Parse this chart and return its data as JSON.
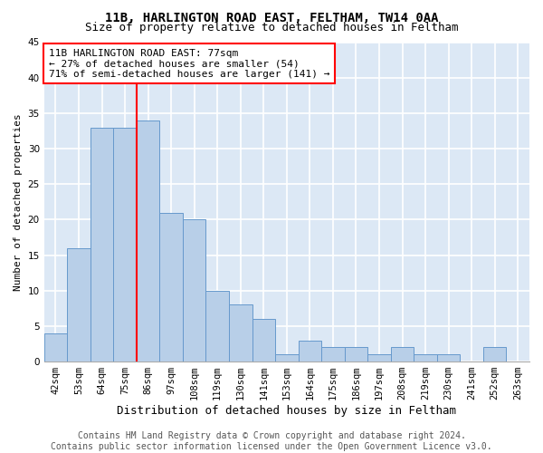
{
  "title": "11B, HARLINGTON ROAD EAST, FELTHAM, TW14 0AA",
  "subtitle": "Size of property relative to detached houses in Feltham",
  "xlabel": "Distribution of detached houses by size in Feltham",
  "ylabel": "Number of detached properties",
  "categories": [
    "42sqm",
    "53sqm",
    "64sqm",
    "75sqm",
    "86sqm",
    "97sqm",
    "108sqm",
    "119sqm",
    "130sqm",
    "141sqm",
    "153sqm",
    "164sqm",
    "175sqm",
    "186sqm",
    "197sqm",
    "208sqm",
    "219sqm",
    "230sqm",
    "241sqm",
    "252sqm",
    "263sqm"
  ],
  "values": [
    4,
    16,
    33,
    33,
    34,
    21,
    20,
    10,
    8,
    6,
    1,
    3,
    2,
    2,
    1,
    2,
    1,
    1,
    0,
    2,
    0
  ],
  "bar_color": "#b8cfe8",
  "bar_edge_color": "#6699cc",
  "property_line_x": 3.5,
  "annotation_text": "11B HARLINGTON ROAD EAST: 77sqm\n← 27% of detached houses are smaller (54)\n71% of semi-detached houses are larger (141) →",
  "annotation_box_color": "white",
  "annotation_box_edge": "red",
  "vline_color": "red",
  "ylim": [
    0,
    45
  ],
  "yticks": [
    0,
    5,
    10,
    15,
    20,
    25,
    30,
    35,
    40,
    45
  ],
  "background_color": "#dce8f5",
  "grid_color": "white",
  "footer_line1": "Contains HM Land Registry data © Crown copyright and database right 2024.",
  "footer_line2": "Contains public sector information licensed under the Open Government Licence v3.0.",
  "title_fontsize": 10,
  "subtitle_fontsize": 9,
  "xlabel_fontsize": 9,
  "ylabel_fontsize": 8,
  "tick_fontsize": 7.5,
  "annotation_fontsize": 8,
  "footer_fontsize": 7
}
